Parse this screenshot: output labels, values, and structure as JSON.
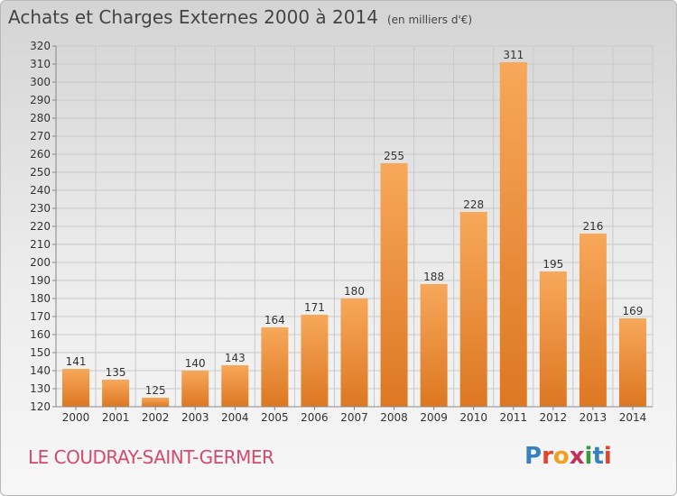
{
  "header": {
    "title": "Achats et Charges Externes 2000 à 2014",
    "unit": "(en milliers d'€)"
  },
  "footer": {
    "town": "LE COUDRAY-SAINT-GERMER",
    "logo": "Proxiti",
    "logo_colors": [
      "#3a7fc0",
      "#e0452b",
      "#f0a020",
      "#c0305a",
      "#3a9a3a",
      "#3a7fc0",
      "#e0452b"
    ]
  },
  "colors": {
    "bar_light": "#f7a85a",
    "bar_dark": "#dd7722",
    "grid": "#c9c9c9",
    "text": "#333333"
  },
  "chart_data": {
    "type": "bar",
    "categories": [
      "2000",
      "2001",
      "2002",
      "2003",
      "2004",
      "2005",
      "2006",
      "2007",
      "2008",
      "2009",
      "2010",
      "2011",
      "2012",
      "2013",
      "2014"
    ],
    "values": [
      141,
      135,
      125,
      140,
      143,
      164,
      171,
      180,
      255,
      188,
      228,
      311,
      195,
      216,
      169
    ],
    "data_labels": [
      "141",
      "135",
      "125",
      "140",
      "143",
      "164",
      "171",
      "180",
      "255",
      "188",
      "228",
      "311",
      "195",
      "216",
      "169"
    ],
    "ylim": [
      120,
      320
    ],
    "yticks": [
      "120",
      "130",
      "140",
      "150",
      "160",
      "170",
      "180",
      "190",
      "200",
      "210",
      "220",
      "230",
      "240",
      "250",
      "260",
      "270",
      "280",
      "290",
      "300",
      "310",
      "320"
    ],
    "grid": true
  }
}
